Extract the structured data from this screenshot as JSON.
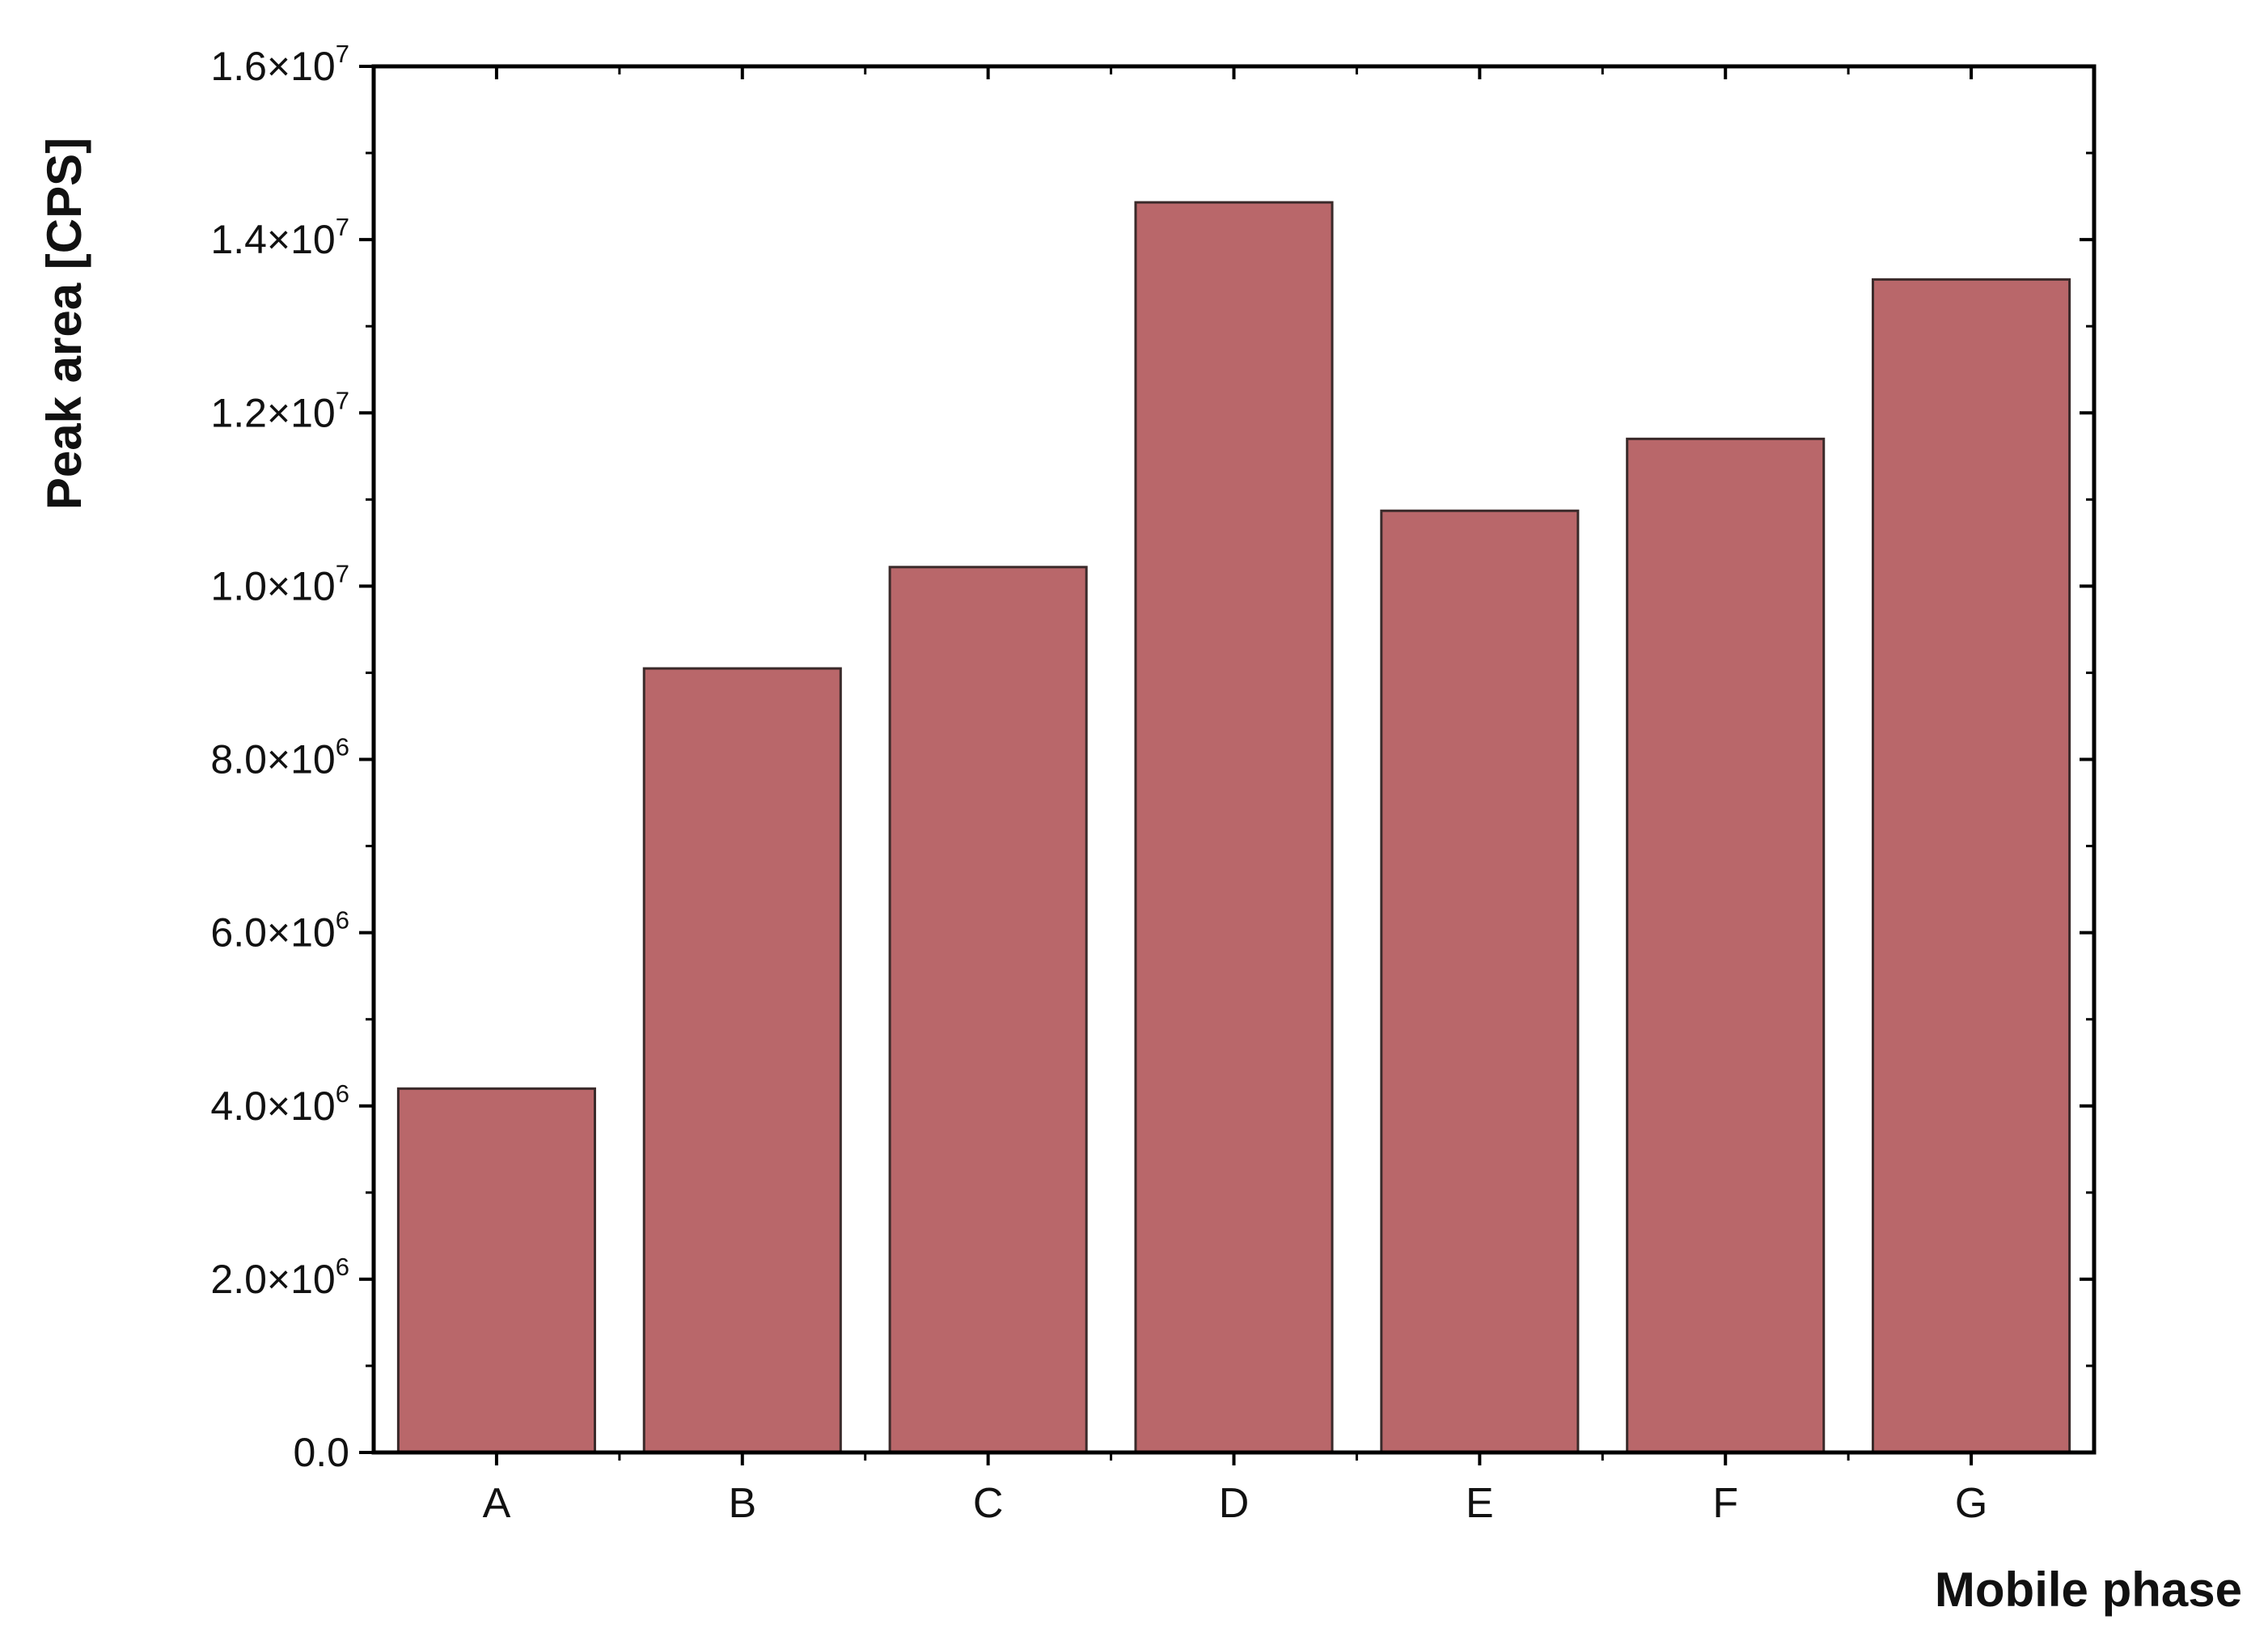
{
  "chart_data": {
    "type": "bar",
    "title": "",
    "xlabel": "Mobile phase",
    "ylabel": "Peak area [CPS]",
    "categories": [
      "A",
      "B",
      "C",
      "D",
      "E",
      "F",
      "G"
    ],
    "values": [
      4200000,
      9050000,
      10220000,
      14430000,
      10870000,
      11700000,
      13540000
    ],
    "ylim": [
      0,
      16000000
    ],
    "y_ticks": [
      {
        "value": 0,
        "mantissa": "0.0",
        "exponent": ""
      },
      {
        "value": 2000000,
        "mantissa": "2.0×10",
        "exponent": "6"
      },
      {
        "value": 4000000,
        "mantissa": "4.0×10",
        "exponent": "6"
      },
      {
        "value": 6000000,
        "mantissa": "6.0×10",
        "exponent": "6"
      },
      {
        "value": 8000000,
        "mantissa": "8.0×10",
        "exponent": "6"
      },
      {
        "value": 10000000,
        "mantissa": "1.0×10",
        "exponent": "7"
      },
      {
        "value": 12000000,
        "mantissa": "1.2×10",
        "exponent": "7"
      },
      {
        "value": 14000000,
        "mantissa": "1.4×10",
        "exponent": "7"
      },
      {
        "value": 16000000,
        "mantissa": "1.6×10",
        "exponent": "7"
      }
    ],
    "grid": false,
    "legend": "none",
    "bar_color": "#b9676a",
    "bar_edge_color": "#3a2a2a",
    "axis_color": "#000000"
  }
}
